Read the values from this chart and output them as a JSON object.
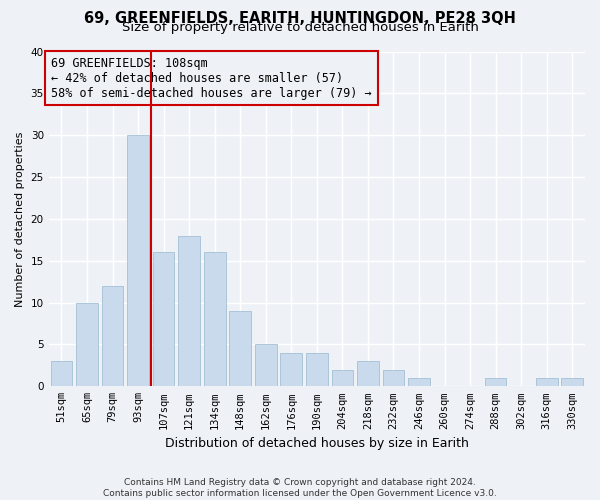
{
  "title": "69, GREENFIELDS, EARITH, HUNTINGDON, PE28 3QH",
  "subtitle": "Size of property relative to detached houses in Earith",
  "xlabel": "Distribution of detached houses by size in Earith",
  "ylabel": "Number of detached properties",
  "bar_labels": [
    "51sqm",
    "65sqm",
    "79sqm",
    "93sqm",
    "107sqm",
    "121sqm",
    "134sqm",
    "148sqm",
    "162sqm",
    "176sqm",
    "190sqm",
    "204sqm",
    "218sqm",
    "232sqm",
    "246sqm",
    "260sqm",
    "274sqm",
    "288sqm",
    "302sqm",
    "316sqm",
    "330sqm"
  ],
  "bar_values": [
    3,
    10,
    12,
    30,
    16,
    18,
    16,
    9,
    5,
    4,
    4,
    2,
    3,
    2,
    1,
    0,
    0,
    1,
    0,
    1,
    1
  ],
  "bar_color": "#c8daeb",
  "bar_edge_color": "#9ab8d0",
  "vline_x": 3.5,
  "vline_color": "#cc0000",
  "annotation_text": "69 GREENFIELDS: 108sqm\n← 42% of detached houses are smaller (57)\n58% of semi-detached houses are larger (79) →",
  "annotation_box_edge": "#cc0000",
  "ylim": [
    0,
    40
  ],
  "yticks": [
    0,
    5,
    10,
    15,
    20,
    25,
    30,
    35,
    40
  ],
  "background_color": "#eef2f7",
  "grid_color": "#ffffff",
  "footer_text": "Contains HM Land Registry data © Crown copyright and database right 2024.\nContains public sector information licensed under the Open Government Licence v3.0.",
  "title_fontsize": 10.5,
  "subtitle_fontsize": 9.5,
  "xlabel_fontsize": 9,
  "ylabel_fontsize": 8,
  "tick_fontsize": 7.5,
  "annotation_fontsize": 8.5,
  "footer_fontsize": 6.5
}
